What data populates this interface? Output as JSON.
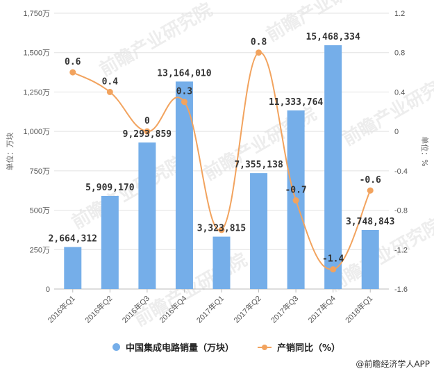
{
  "chart_data": {
    "type": "bar+line",
    "title": "",
    "categories": [
      "2016年Q1",
      "2016年Q2",
      "2016年Q3",
      "2016年Q4",
      "2017年Q1",
      "2017年Q2",
      "2017年Q3",
      "2017年Q4",
      "2018年Q1"
    ],
    "series": [
      {
        "name": "中国集成电路销量（万块）",
        "type": "bar",
        "axis": "left",
        "color": "#75aee9",
        "values": [
          2664312,
          5909170,
          9293859,
          13164010,
          3323815,
          7355138,
          11333764,
          15468334,
          3748843
        ],
        "labels": [
          "2,664,312",
          "5,909,170",
          "9,293,859",
          "13,164,010",
          "3,323,815",
          "7,355,138",
          "11,333,764",
          "15,468,334",
          "3,748,843"
        ]
      },
      {
        "name": "产销同比（%）",
        "type": "line",
        "axis": "right",
        "color": "#f2a35e",
        "values": [
          0.6,
          0.4,
          0,
          0.3,
          -1.0,
          0.8,
          -0.7,
          -1.4,
          -0.6
        ],
        "labels": [
          "0.6",
          "0.4",
          "0",
          "0.3",
          "",
          "0.8",
          "-0.7",
          "-1.4",
          "-0.6"
        ]
      }
    ],
    "left_axis": {
      "label": "单位：万块",
      "ticks": [
        "0",
        "250万",
        "500万",
        "750万",
        "1,000万",
        "1,250万",
        "1,500万",
        "1,750万"
      ],
      "range": [
        0,
        17500000
      ]
    },
    "right_axis": {
      "label": "单位：%",
      "ticks": [
        "-1.6",
        "-1.2",
        "-0.8",
        "-0.4",
        "0",
        "0.4",
        "0.8",
        "1.2"
      ],
      "range": [
        -1.6,
        1.2
      ]
    },
    "grid": true,
    "legend_position": "bottom"
  },
  "legend": {
    "bar_label": "中国集成电路销量（万块）",
    "line_label": "产销同比（%）"
  },
  "credit": "@前瞻经济学人APP",
  "watermark": "前瞻产业研究院"
}
